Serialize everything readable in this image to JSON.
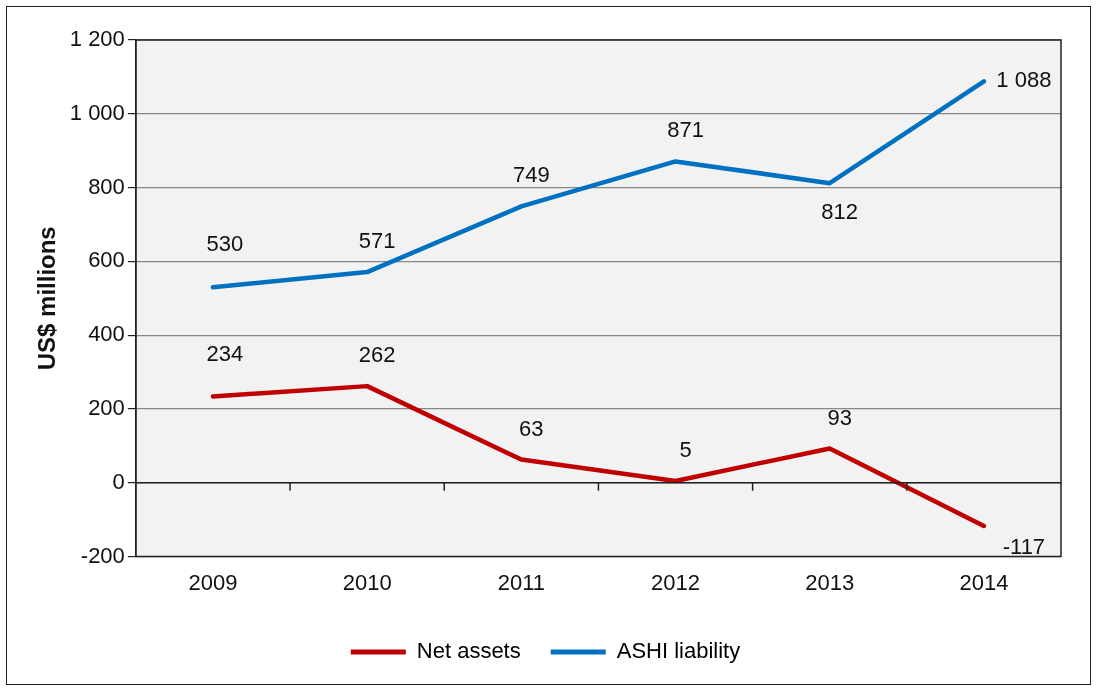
{
  "chart_data": {
    "type": "line",
    "ylabel": "US$ millions",
    "categories": [
      "2009",
      "2010",
      "2011",
      "2012",
      "2013",
      "2014"
    ],
    "series": [
      {
        "name": "Net assets",
        "color": "#c00000",
        "values": [
          234,
          262,
          63,
          5,
          93,
          -117
        ],
        "value_labels": [
          "234",
          "262",
          "63",
          "5",
          "93",
          "-117"
        ]
      },
      {
        "name": "ASHI liability",
        "color": "#0070c0",
        "values": [
          530,
          571,
          749,
          871,
          812,
          1088
        ],
        "value_labels": [
          "530",
          "571",
          "749",
          "871",
          "812",
          "1 088"
        ]
      }
    ],
    "ylim": [
      -200,
      1200
    ],
    "yticks": [
      -200,
      0,
      200,
      400,
      600,
      800,
      {
        "value": 1000,
        "label": "1 000"
      },
      {
        "value": 1200,
        "label": "1 200"
      }
    ],
    "grid": "y",
    "legend": "bottom",
    "marker": "none",
    "line_style": "solid"
  }
}
